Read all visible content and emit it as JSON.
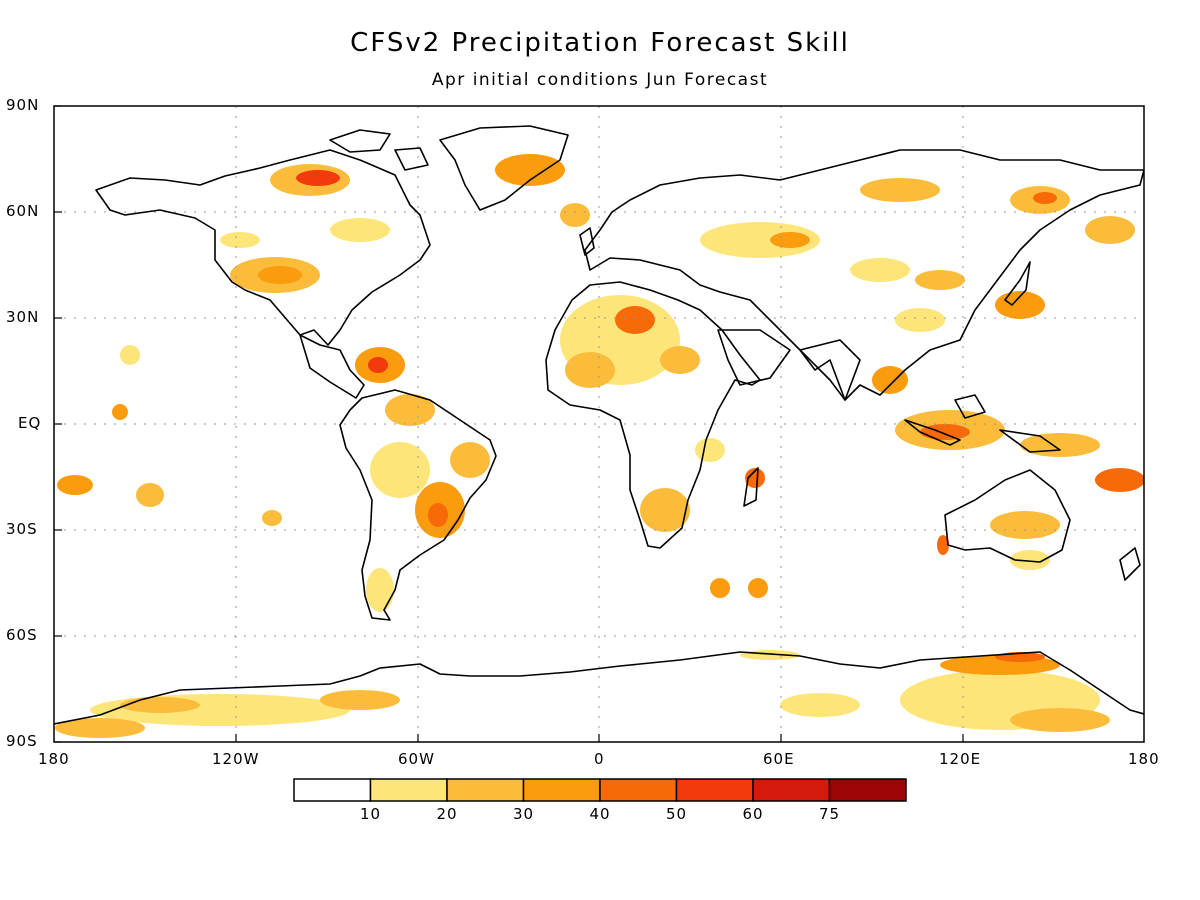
{
  "title": "CFSv2 Precipitation Forecast Skill",
  "subtitle": "Apr initial conditions  Jun Forecast",
  "lat_ticks": [
    "90N",
    "60N",
    "30N",
    "EQ",
    "30S",
    "60S",
    "90S"
  ],
  "lon_ticks": [
    "180",
    "120W",
    "60W",
    "0",
    "60E",
    "120E",
    "180"
  ],
  "colorbar": {
    "bins": [
      {
        "color": "#ffffff",
        "label": ""
      },
      {
        "color": "#fde57a",
        "label": "10"
      },
      {
        "color": "#fbbc3c",
        "label": "20"
      },
      {
        "color": "#fb9b0e",
        "label": "30"
      },
      {
        "color": "#f86908",
        "label": "40"
      },
      {
        "color": "#f23a0c",
        "label": "50"
      },
      {
        "color": "#d41a0a",
        "label": "60"
      },
      {
        "color": "#9c0506",
        "label": "75"
      }
    ]
  },
  "colors": {
    "coastline": "#000000",
    "grid": "#999999"
  }
}
